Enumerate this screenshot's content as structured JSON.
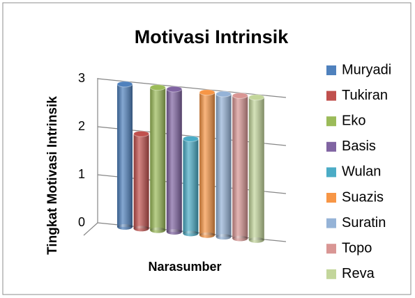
{
  "chart_data": {
    "type": "bar",
    "title": "Motivasi Intrinsik",
    "y_label": "Tingkat Motivasi Intrinsik",
    "x_label": "Narasumber",
    "series": [
      {
        "name": "Muryadi",
        "color": "#4f81bd",
        "values": [
          3
        ]
      },
      {
        "name": "Tukiran",
        "color": "#c0504d",
        "values": [
          2
        ]
      },
      {
        "name": "Eko",
        "color": "#9bbb59",
        "values": [
          3
        ]
      },
      {
        "name": "Basis",
        "color": "#8064a2",
        "values": [
          3
        ]
      },
      {
        "name": "Wulan",
        "color": "#4bacc6",
        "values": [
          2
        ]
      },
      {
        "name": "Suazis",
        "color": "#f79646",
        "values": [
          3
        ]
      },
      {
        "name": "Suratin",
        "color": "#95b3d7",
        "values": [
          3
        ]
      },
      {
        "name": "Topo",
        "color": "#d99694",
        "values": [
          3
        ]
      },
      {
        "name": "Reva",
        "color": "#c3d69b",
        "values": [
          3
        ]
      }
    ],
    "ylim": [
      0,
      3
    ],
    "yticks": [
      0,
      1,
      2,
      3
    ],
    "grid": true,
    "legend": "right"
  }
}
